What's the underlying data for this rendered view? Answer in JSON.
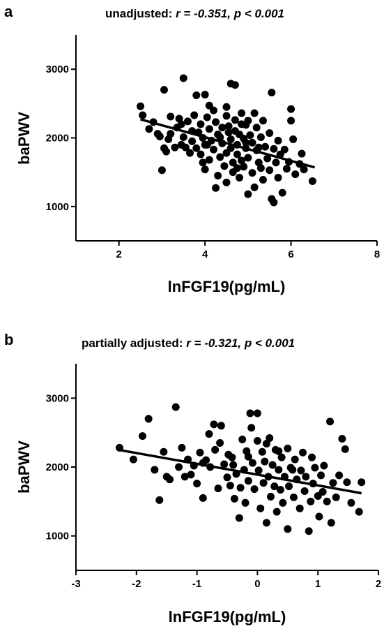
{
  "panels": [
    {
      "letter": "a",
      "title_prefix": "unadjusted: ",
      "title_stat": "r = -0.351, p < 0.001"
    },
    {
      "letter": "b",
      "title_prefix": "partially adjusted: ",
      "title_stat": "r = -0.321, p < 0.001"
    }
  ],
  "chart_data": [
    {
      "type": "scatter",
      "title": "unadjusted: r = -0.351, p < 0.001",
      "xlabel": "lnFGF19(pg/mL)",
      "ylabel": "baPWV",
      "xlim": [
        1,
        8
      ],
      "ylim": [
        500,
        3500
      ],
      "xticks": [
        2,
        4,
        6,
        8
      ],
      "yticks": [
        1000,
        2000,
        3000
      ],
      "fit_line": {
        "x": [
          2.5,
          6.55
        ],
        "y": [
          2270,
          1570
        ]
      },
      "points": [
        [
          2.5,
          2460
        ],
        [
          2.55,
          2330
        ],
        [
          2.7,
          2130
        ],
        [
          2.8,
          2230
        ],
        [
          2.9,
          2060
        ],
        [
          2.95,
          2020
        ],
        [
          3.0,
          1530
        ],
        [
          3.05,
          2700
        ],
        [
          3.05,
          1850
        ],
        [
          3.1,
          1800
        ],
        [
          3.15,
          1980
        ],
        [
          3.2,
          2310
        ],
        [
          3.2,
          2060
        ],
        [
          3.3,
          1860
        ],
        [
          3.35,
          2150
        ],
        [
          3.4,
          2280
        ],
        [
          3.45,
          2200
        ],
        [
          3.45,
          1900
        ],
        [
          3.5,
          2870
        ],
        [
          3.5,
          2010
        ],
        [
          3.55,
          1860
        ],
        [
          3.6,
          2240
        ],
        [
          3.65,
          1780
        ],
        [
          3.7,
          2100
        ],
        [
          3.7,
          1950
        ],
        [
          3.75,
          2330
        ],
        [
          3.8,
          2620
        ],
        [
          3.8,
          1850
        ],
        [
          3.85,
          2080
        ],
        [
          3.9,
          2200
        ],
        [
          3.9,
          1760
        ],
        [
          3.95,
          2000
        ],
        [
          4.0,
          1540
        ],
        [
          4.0,
          1900
        ],
        [
          4.0,
          2630
        ],
        [
          4.05,
          2300
        ],
        [
          4.1,
          2470
        ],
        [
          4.1,
          2130
        ],
        [
          4.1,
          1680
        ],
        [
          4.15,
          1960
        ],
        [
          4.2,
          2400
        ],
        [
          4.2,
          1830
        ],
        [
          4.25,
          1270
        ],
        [
          4.25,
          2230
        ],
        [
          4.3,
          2050
        ],
        [
          4.3,
          1450
        ],
        [
          4.35,
          1720
        ],
        [
          4.4,
          2150
        ],
        [
          4.4,
          1920
        ],
        [
          4.45,
          1590
        ],
        [
          4.5,
          2450
        ],
        [
          4.5,
          2320
        ],
        [
          4.5,
          1780
        ],
        [
          4.5,
          1350
        ],
        [
          4.55,
          2080
        ],
        [
          4.6,
          2790
        ],
        [
          4.6,
          1980
        ],
        [
          4.6,
          1850
        ],
        [
          4.65,
          1640
        ],
        [
          4.65,
          1500
        ],
        [
          4.7,
          2770
        ],
        [
          4.7,
          2260
        ],
        [
          4.7,
          2100
        ],
        [
          4.75,
          1900
        ],
        [
          4.75,
          1760
        ],
        [
          4.8,
          2050
        ],
        [
          4.8,
          1420
        ],
        [
          4.85,
          1670
        ],
        [
          4.85,
          2360
        ],
        [
          4.9,
          1990
        ],
        [
          4.9,
          1580
        ],
        [
          4.95,
          2190
        ],
        [
          4.95,
          1850
        ],
        [
          5.0,
          1180
        ],
        [
          5.0,
          2250
        ],
        [
          5.0,
          1710
        ],
        [
          5.05,
          2040
        ],
        [
          5.1,
          1490
        ],
        [
          5.1,
          1930
        ],
        [
          5.15,
          2360
        ],
        [
          5.15,
          1280
        ],
        [
          5.2,
          2150
        ],
        [
          5.2,
          1820
        ],
        [
          5.25,
          1640
        ],
        [
          5.3,
          2010
        ],
        [
          5.3,
          1560
        ],
        [
          5.35,
          2250
        ],
        [
          5.35,
          1390
        ],
        [
          5.4,
          1870
        ],
        [
          5.45,
          1700
        ],
        [
          5.5,
          2070
        ],
        [
          5.5,
          1530
        ],
        [
          5.55,
          2660
        ],
        [
          5.55,
          1110
        ],
        [
          5.6,
          1840
        ],
        [
          5.6,
          1060
        ],
        [
          5.65,
          1640
        ],
        [
          5.7,
          1960
        ],
        [
          5.7,
          1420
        ],
        [
          5.75,
          1760
        ],
        [
          5.8,
          1200
        ],
        [
          5.85,
          1830
        ],
        [
          5.9,
          1550
        ],
        [
          5.95,
          1650
        ],
        [
          6.0,
          2420
        ],
        [
          6.0,
          2250
        ],
        [
          6.05,
          1980
        ],
        [
          6.1,
          1470
        ],
        [
          6.2,
          1620
        ],
        [
          6.25,
          1770
        ],
        [
          6.3,
          1540
        ],
        [
          6.5,
          1370
        ],
        [
          4.05,
          1900
        ],
        [
          4.55,
          2170
        ],
        [
          4.75,
          1560
        ],
        [
          4.95,
          1930
        ],
        [
          5.25,
          1860
        ],
        [
          4.35,
          2010
        ],
        [
          3.95,
          1640
        ],
        [
          4.85,
          2200
        ]
      ]
    },
    {
      "type": "scatter",
      "title": "partially adjusted: r = -0.321, p < 0.001",
      "xlabel": "lnFGF19(pg/mL)",
      "ylabel": "baPWV",
      "xlim": [
        -3,
        2
      ],
      "ylim": [
        500,
        3500
      ],
      "xticks": [
        -3,
        -2,
        -1,
        0,
        1,
        2
      ],
      "yticks": [
        1000,
        2000,
        3000
      ],
      "fit_line": {
        "x": [
          -2.3,
          1.72
        ],
        "y": [
          2250,
          1620
        ]
      },
      "points": [
        [
          -2.28,
          2280
        ],
        [
          -2.05,
          2110
        ],
        [
          -1.9,
          2450
        ],
        [
          -1.8,
          2700
        ],
        [
          -1.7,
          1960
        ],
        [
          -1.62,
          1520
        ],
        [
          -1.55,
          2220
        ],
        [
          -1.5,
          1860
        ],
        [
          -1.45,
          1820
        ],
        [
          -1.35,
          2870
        ],
        [
          -1.3,
          2000
        ],
        [
          -1.25,
          2280
        ],
        [
          -1.2,
          1860
        ],
        [
          -1.15,
          2110
        ],
        [
          -1.1,
          1890
        ],
        [
          -1.05,
          2020
        ],
        [
          -1.0,
          1760
        ],
        [
          -0.95,
          2210
        ],
        [
          -0.9,
          1550
        ],
        [
          -0.85,
          2100
        ],
        [
          -0.8,
          2480
        ],
        [
          -0.78,
          2000
        ],
        [
          -0.72,
          2620
        ],
        [
          -0.7,
          2250
        ],
        [
          -0.65,
          1690
        ],
        [
          -0.62,
          2350
        ],
        [
          -0.6,
          2600
        ],
        [
          -0.55,
          2040
        ],
        [
          -0.5,
          1850
        ],
        [
          -0.48,
          2180
        ],
        [
          -0.45,
          1730
        ],
        [
          -0.4,
          2030
        ],
        [
          -0.38,
          1540
        ],
        [
          -0.35,
          1900
        ],
        [
          -0.3,
          1260
        ],
        [
          -0.28,
          1700
        ],
        [
          -0.25,
          2400
        ],
        [
          -0.22,
          1960
        ],
        [
          -0.2,
          1480
        ],
        [
          -0.18,
          2230
        ],
        [
          -0.15,
          1800
        ],
        [
          -0.12,
          2780
        ],
        [
          -0.1,
          2570
        ],
        [
          -0.08,
          2060
        ],
        [
          -0.05,
          1680
        ],
        [
          0.0,
          2780
        ],
        [
          0.0,
          2380
        ],
        [
          0.02,
          1950
        ],
        [
          0.05,
          1400
        ],
        [
          0.08,
          2220
        ],
        [
          0.1,
          1770
        ],
        [
          0.12,
          2080
        ],
        [
          0.15,
          1190
        ],
        [
          0.18,
          1860
        ],
        [
          0.2,
          2420
        ],
        [
          0.22,
          1570
        ],
        [
          0.25,
          2030
        ],
        [
          0.28,
          1720
        ],
        [
          0.3,
          2250
        ],
        [
          0.32,
          1350
        ],
        [
          0.35,
          1960
        ],
        [
          0.38,
          1670
        ],
        [
          0.4,
          2140
        ],
        [
          0.42,
          1480
        ],
        [
          0.45,
          1860
        ],
        [
          0.5,
          1100
        ],
        [
          0.5,
          2270
        ],
        [
          0.52,
          1720
        ],
        [
          0.55,
          1990
        ],
        [
          0.6,
          1560
        ],
        [
          0.62,
          2110
        ],
        [
          0.65,
          1820
        ],
        [
          0.7,
          1400
        ],
        [
          0.72,
          1950
        ],
        [
          0.75,
          2210
        ],
        [
          0.78,
          1650
        ],
        [
          0.8,
          1860
        ],
        [
          0.85,
          1070
        ],
        [
          0.88,
          1500
        ],
        [
          0.9,
          2140
        ],
        [
          0.92,
          1760
        ],
        [
          0.95,
          1990
        ],
        [
          1.0,
          1580
        ],
        [
          1.02,
          1280
        ],
        [
          1.05,
          1880
        ],
        [
          1.08,
          1640
        ],
        [
          1.1,
          2020
        ],
        [
          1.15,
          1500
        ],
        [
          1.2,
          2660
        ],
        [
          1.22,
          1190
        ],
        [
          1.25,
          1770
        ],
        [
          1.3,
          1560
        ],
        [
          1.35,
          1880
        ],
        [
          1.4,
          2410
        ],
        [
          1.45,
          2260
        ],
        [
          1.48,
          1780
        ],
        [
          1.55,
          1480
        ],
        [
          1.68,
          1350
        ],
        [
          1.72,
          1780
        ],
        [
          -0.9,
          2060
        ],
        [
          -0.42,
          2140
        ],
        [
          0.15,
          2340
        ],
        [
          0.58,
          1960
        ],
        [
          -0.15,
          2150
        ],
        [
          0.35,
          2230
        ]
      ]
    }
  ]
}
